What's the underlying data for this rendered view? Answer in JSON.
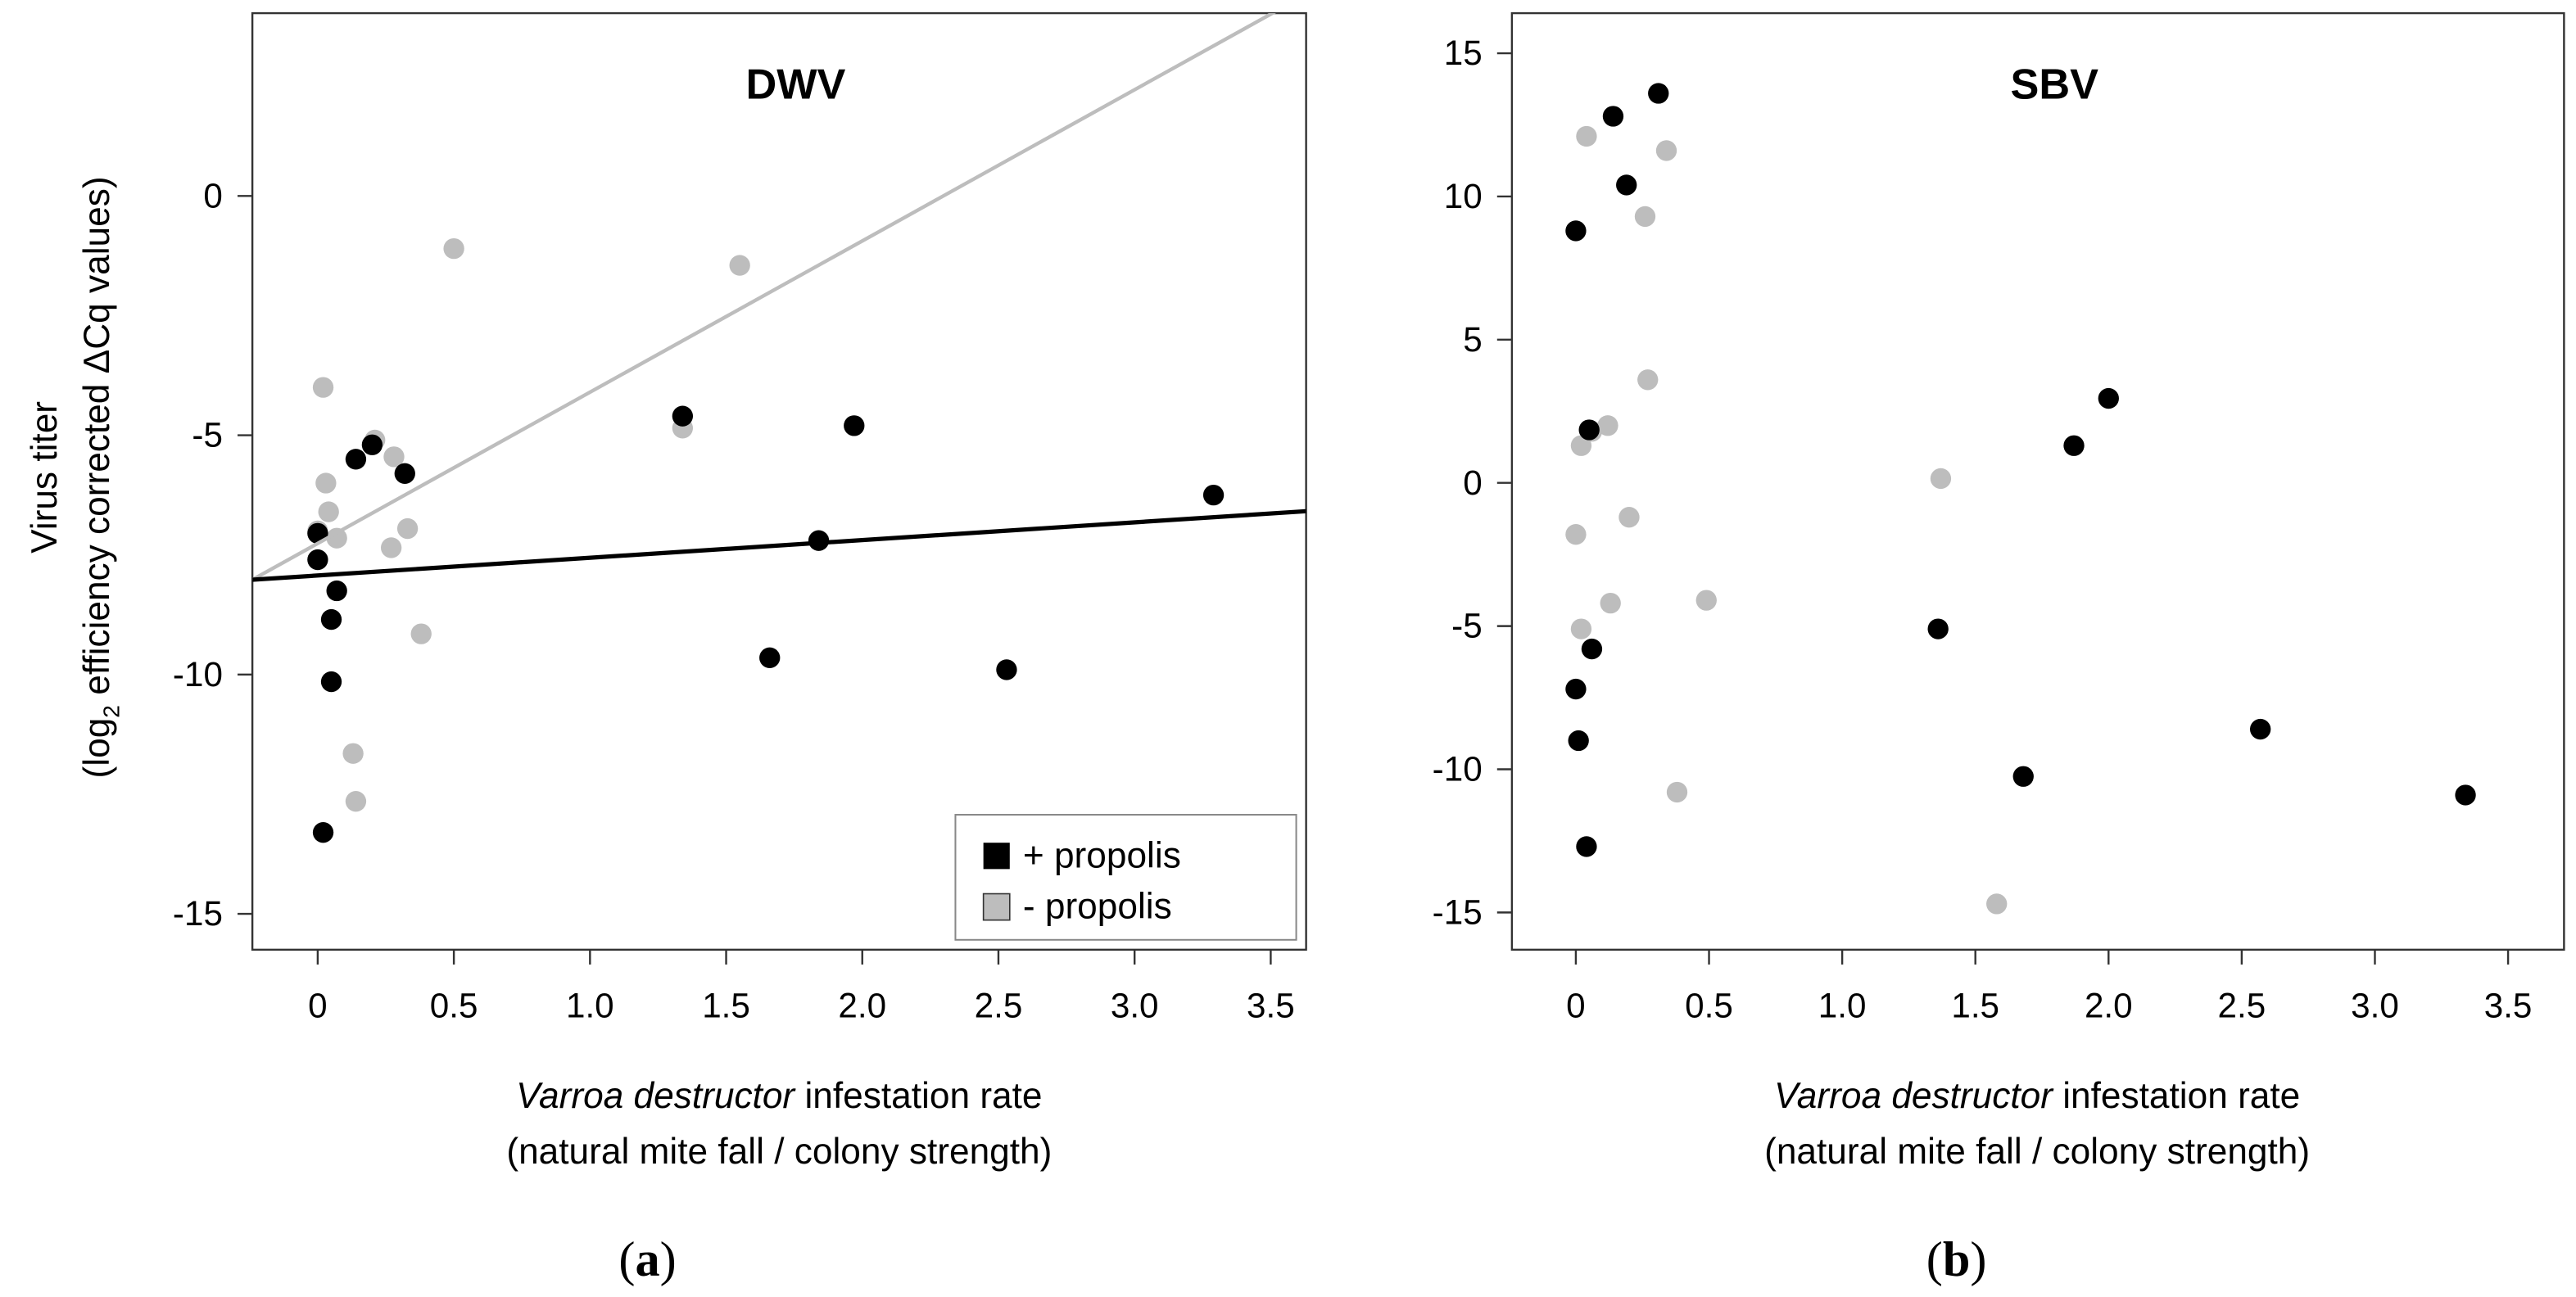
{
  "colors": {
    "plus": "#000000",
    "minus": "#bdbdbd"
  },
  "legend": {
    "plus": "+ propolis",
    "minus": "- propolis"
  },
  "ylabel": {
    "line1": "Virus titer",
    "pre": "(log",
    "sub": "2",
    "post": " efficiency corrected ΔCq values)"
  },
  "xlabel": {
    "italic": "Varroa destructor",
    "rest": " infestation rate",
    "line2": "(natural mite fall / colony strength)"
  },
  "chart_data": [
    {
      "type": "scatter",
      "title": "DWV",
      "panel_open": "(",
      "panel_letter": "a",
      "panel_close": ")",
      "xlim": [
        -0.24,
        3.63
      ],
      "ylim": [
        -15.75,
        3.82
      ],
      "xticks": [
        0,
        0.5,
        1.0,
        1.5,
        2.0,
        2.5,
        3.0,
        3.5
      ],
      "xtick_labels": [
        "0",
        "0.5",
        "1.0",
        "1.5",
        "2.0",
        "2.5",
        "3.0",
        "3.5"
      ],
      "yticks": [
        0,
        -5,
        -10,
        -15
      ],
      "ytick_labels": [
        "0",
        "-5",
        "-10",
        "-15"
      ],
      "legend_position": "bottom-right",
      "series": [
        {
          "name": "- propolis",
          "color_key": "minus",
          "x": [
            0,
            0.02,
            0.03,
            0.04,
            0.07,
            0.21,
            0.28,
            0.27,
            0.33,
            0.38,
            0.13,
            0.14,
            0.5,
            1.55,
            1.34
          ],
          "y": [
            -7.0,
            -4.0,
            -6.0,
            -6.6,
            -7.15,
            -5.1,
            -5.45,
            -7.35,
            -6.95,
            -9.15,
            -11.65,
            -12.65,
            -1.1,
            -1.45,
            -4.85
          ],
          "fit": {
            "intercept": -7.26,
            "slope": 3.16
          }
        },
        {
          "name": "+ propolis",
          "color_key": "plus",
          "x": [
            0,
            0,
            0.14,
            0.2,
            0.32,
            0.05,
            0.07,
            0.05,
            0.02,
            1.34,
            1.84,
            1.97,
            1.66,
            2.53,
            3.29
          ],
          "y": [
            -7.6,
            -7.05,
            -5.5,
            -5.2,
            -5.8,
            -8.85,
            -8.25,
            -10.15,
            -13.3,
            -4.6,
            -7.2,
            -4.8,
            -9.65,
            -9.9,
            -6.25
          ],
          "fit": {
            "intercept": -7.93,
            "slope": 0.37
          }
        }
      ]
    },
    {
      "type": "scatter",
      "title": "SBV",
      "panel_open": "(",
      "panel_letter": "b",
      "panel_close": ")",
      "xlim": [
        -0.24,
        3.71
      ],
      "ylim": [
        -16.3,
        16.4
      ],
      "xticks": [
        0,
        0.5,
        1.0,
        1.5,
        2.0,
        2.5,
        3.0,
        3.5
      ],
      "xtick_labels": [
        "0",
        "0.5",
        "1.0",
        "1.5",
        "2.0",
        "2.5",
        "3.0",
        "3.5"
      ],
      "yticks": [
        15,
        10,
        5,
        0,
        -5,
        -10,
        -15
      ],
      "ytick_labels": [
        "15",
        "10",
        "5",
        "0",
        "-5",
        "-10",
        "-15"
      ],
      "series": [
        {
          "name": "- propolis",
          "color_key": "minus",
          "x": [
            0.04,
            0.34,
            0.26,
            0.27,
            0.06,
            0.12,
            0.02,
            0,
            0.2,
            0.13,
            0.02,
            0.49,
            0.38,
            1.37,
            1.58
          ],
          "y": [
            12.1,
            11.6,
            9.3,
            3.6,
            1.8,
            2.0,
            1.3,
            -1.8,
            -1.2,
            -4.2,
            -5.1,
            -4.1,
            -10.8,
            0.15,
            -14.7
          ]
        },
        {
          "name": "+ propolis",
          "color_key": "plus",
          "x": [
            0,
            0.14,
            0.19,
            0.31,
            0.05,
            0,
            0.06,
            0.01,
            0.04,
            1.36,
            1.87,
            2.0,
            1.68,
            2.57,
            3.34
          ],
          "y": [
            8.8,
            12.8,
            10.4,
            13.6,
            1.85,
            -7.2,
            -5.8,
            -9.0,
            -12.7,
            -5.1,
            1.3,
            2.95,
            -10.25,
            -8.6,
            -10.9
          ]
        }
      ]
    }
  ]
}
